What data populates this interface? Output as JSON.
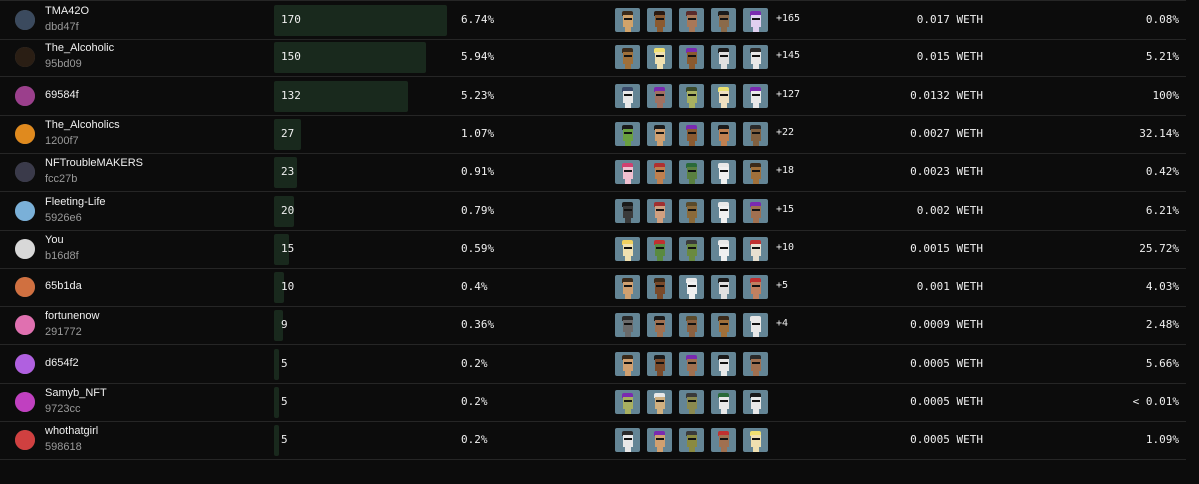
{
  "currency": "WETH",
  "rows": [
    {
      "name": "TMA42O",
      "addr": "dbd47f",
      "count": "170",
      "share": 6.74,
      "share_label": "6.74%",
      "more": "+165",
      "price": "0.017",
      "pct": "0.08%",
      "avatar_color": "#3b4a5e",
      "thumbs": [
        [
          "#3a2a1a",
          "#d1a36a"
        ],
        [
          "#2a1a10",
          "#8a5a30"
        ],
        [
          "#5a2b2b",
          "#a87858"
        ],
        [
          "#1a1a1a",
          "#8a6a4a"
        ],
        [
          "#7a2ab0",
          "#e0d0f0"
        ]
      ]
    },
    {
      "name": "The_Alcoholic",
      "addr": "95bd09",
      "count": "150",
      "share": 5.94,
      "share_label": "5.94%",
      "more": "+145",
      "price": "0.015",
      "pct": "5.21%",
      "avatar_color": "#2a1e14",
      "thumbs": [
        [
          "#3a2a1a",
          "#a0703a"
        ],
        [
          "#f0e070",
          "#f0e0b0"
        ],
        [
          "#7a2ab0",
          "#8a5a30"
        ],
        [
          "#1a1a1a",
          "#e0e0e0"
        ],
        [
          "#2a2a2a",
          "#e8e8e8"
        ]
      ]
    },
    {
      "name": "",
      "addr": "",
      "single": "69584f",
      "count": "132",
      "share": 5.23,
      "share_label": "5.23%",
      "more": "+127",
      "price": "0.0132",
      "pct": "100%",
      "avatar_color": "#9b3f8c",
      "thumbs": [
        [
          "#3a4a6a",
          "#e8e8e8"
        ],
        [
          "#7a2ab0",
          "#a07060"
        ],
        [
          "#3a4a2a",
          "#a8b060"
        ],
        [
          "#e8e070",
          "#f0e0c0"
        ],
        [
          "#7a2ab0",
          "#e8e8e8"
        ]
      ]
    },
    {
      "name": "The_Alcoholics",
      "addr": "1200f7",
      "count": "27",
      "share": 1.07,
      "share_label": "1.07%",
      "more": "+22",
      "price": "0.0027",
      "pct": "32.14%",
      "avatar_color": "#e08a1e",
      "thumbs": [
        [
          "#1a1a1a",
          "#6aa040"
        ],
        [
          "#1a1a1a",
          "#d0a070"
        ],
        [
          "#7a2ab0",
          "#8a5a30"
        ],
        [
          "#1a1a1a",
          "#c08050"
        ],
        [
          "#2a2a2a",
          "#806040"
        ]
      ]
    },
    {
      "name": "NFTroubleMAKERS",
      "addr": "fcc27b",
      "count": "23",
      "share": 0.91,
      "share_label": "0.91%",
      "more": "+18",
      "price": "0.0023",
      "pct": "0.42%",
      "avatar_color": "#3a3a4a",
      "thumbs": [
        [
          "#d04070",
          "#f0c0d0"
        ],
        [
          "#b03030",
          "#c08050"
        ],
        [
          "#2a6a3a",
          "#5a8040"
        ],
        [
          "#e8e8e8",
          "#f0f0f0"
        ],
        [
          "#3a2a1a",
          "#a0703a"
        ]
      ]
    },
    {
      "name": "Fleeting-Life",
      "addr": "5926e6",
      "count": "20",
      "share": 0.79,
      "share_label": "0.79%",
      "more": "+15",
      "price": "0.002",
      "pct": "6.21%",
      "avatar_color": "#7ab0d8",
      "thumbs": [
        [
          "#1a1a1a",
          "#3a3a3a"
        ],
        [
          "#a03030",
          "#d0a080"
        ],
        [
          "#5a4a2a",
          "#8a6a3a"
        ],
        [
          "#e8e8e8",
          "#f0f0f0"
        ],
        [
          "#7a2ab0",
          "#a07050"
        ]
      ]
    },
    {
      "name": "You",
      "addr": "b16d8f",
      "count": "15",
      "share": 0.59,
      "share_label": "0.59%",
      "more": "+10",
      "price": "0.0015",
      "pct": "25.72%",
      "avatar_color": "#d8d8d8",
      "thumbs": [
        [
          "#f0d060",
          "#f0e0b0"
        ],
        [
          "#c03030",
          "#5a8a40"
        ],
        [
          "#3a3a3a",
          "#6a8a40"
        ],
        [
          "#e8e8e8",
          "#f0f0f0"
        ],
        [
          "#c03030",
          "#e8e0d0"
        ]
      ]
    },
    {
      "name": "",
      "addr": "",
      "single": "65b1da",
      "count": "10",
      "share": 0.4,
      "share_label": "0.4%",
      "more": "+5",
      "price": "0.001",
      "pct": "4.03%",
      "avatar_color": "#d07040",
      "thumbs": [
        [
          "#3a2a1a",
          "#d0a070"
        ],
        [
          "#3a2a1a",
          "#7a4a2a"
        ],
        [
          "#e8e8e8",
          "#f0f0f0"
        ],
        [
          "#1a1a1a",
          "#e0e0e0"
        ],
        [
          "#c03030",
          "#c08060"
        ]
      ]
    },
    {
      "name": "fortunenow",
      "addr": "291772",
      "count": "9",
      "share": 0.36,
      "share_label": "0.36%",
      "more": "+4",
      "price": "0.0009",
      "pct": "2.48%",
      "avatar_color": "#e070b0",
      "thumbs": [
        [
          "#2a2a2a",
          "#6a6a6a"
        ],
        [
          "#1a1a1a",
          "#a07050"
        ],
        [
          "#5a4a2a",
          "#8a6040"
        ],
        [
          "#3a2a1a",
          "#a0703a"
        ],
        [
          "#e8e8e8",
          "#e8e8e8"
        ]
      ]
    },
    {
      "name": "",
      "addr": "",
      "single": "d654f2",
      "count": "5",
      "share": 0.2,
      "share_label": "0.2%",
      "more": "",
      "price": "0.0005",
      "pct": "5.66%",
      "avatar_color": "#b060e0",
      "thumbs": [
        [
          "#3a2a1a",
          "#d0a070"
        ],
        [
          "#1a1a1a",
          "#7a4a2a"
        ],
        [
          "#7a2ab0",
          "#a07050"
        ],
        [
          "#1a1a1a",
          "#e8e8e8"
        ],
        [
          "#2a2a2a",
          "#a07050"
        ]
      ]
    },
    {
      "name": "Samyb_NFT",
      "addr": "9723cc",
      "count": "5",
      "share": 0.2,
      "share_label": "0.2%",
      "more": "",
      "price": "0.0005",
      "pct": "< 0.01%",
      "avatar_color": "#c040c0",
      "thumbs": [
        [
          "#7a2ab0",
          "#a8b060"
        ],
        [
          "#e8e8e8",
          "#d0b080"
        ],
        [
          "#3a3a3a",
          "#8a8a50"
        ],
        [
          "#2a6a3a",
          "#e8e8e8"
        ],
        [
          "#1a1a1a",
          "#e8e8e8"
        ]
      ]
    },
    {
      "name": "whothatgirl",
      "addr": "598618",
      "count": "5",
      "share": 0.2,
      "share_label": "0.2%",
      "more": "",
      "price": "0.0005",
      "pct": "1.09%",
      "avatar_color": "#d04040",
      "thumbs": [
        [
          "#2a2a2a",
          "#e8e8e8"
        ],
        [
          "#7a2ab0",
          "#d0a070"
        ],
        [
          "#3a3a3a",
          "#8a8a40"
        ],
        [
          "#c03030",
          "#a07050"
        ],
        [
          "#f0e070",
          "#f0e0b0"
        ]
      ]
    }
  ]
}
